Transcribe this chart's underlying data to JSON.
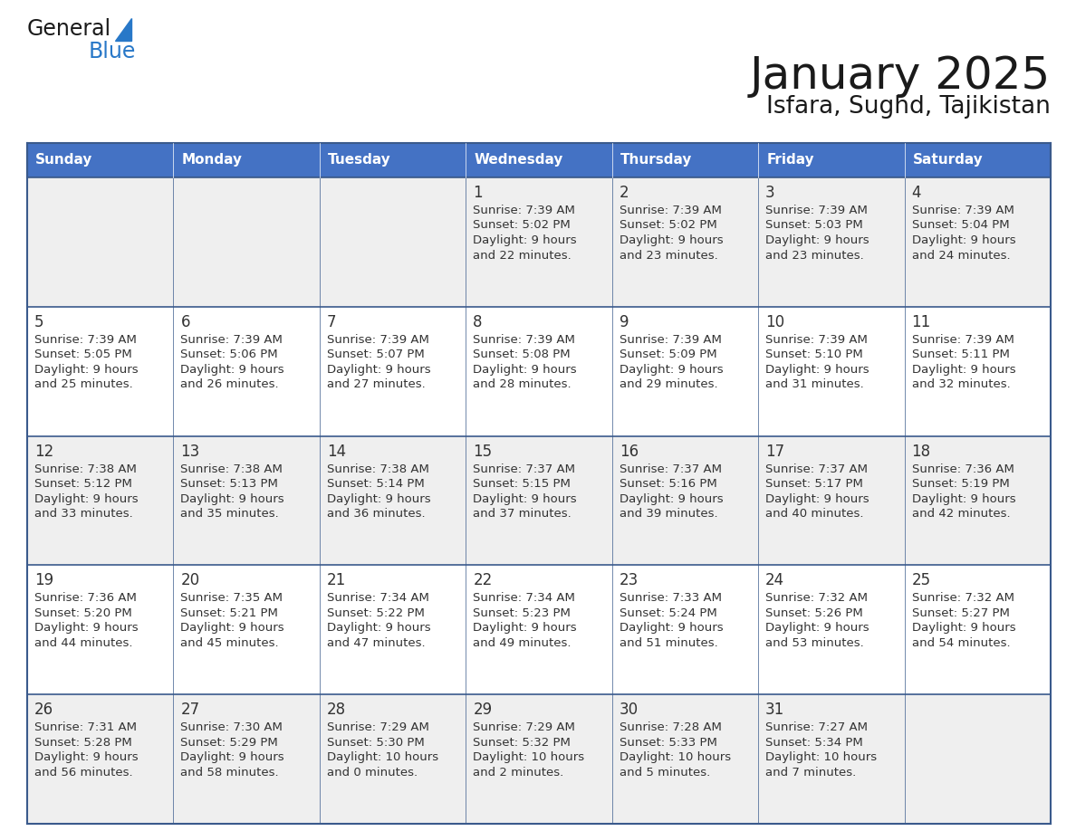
{
  "title": "January 2025",
  "subtitle": "Isfara, Sughd, Tajikistan",
  "header_bg": "#4472C4",
  "header_text_color": "#FFFFFF",
  "cell_bg_even": "#EFEFEF",
  "cell_bg_odd": "#FFFFFF",
  "border_color": "#3A5A8C",
  "days_of_week": [
    "Sunday",
    "Monday",
    "Tuesday",
    "Wednesday",
    "Thursday",
    "Friday",
    "Saturday"
  ],
  "title_color": "#1a1a1a",
  "subtitle_color": "#1a1a1a",
  "cell_text_color": "#333333",
  "day_num_color": "#333333",
  "logo_general_color": "#1a1a1a",
  "logo_blue_color": "#2878C8",
  "logo_triangle_color": "#2878C8",
  "calendar": [
    [
      {
        "day": "",
        "sunrise": "",
        "sunset": "",
        "daylight": ""
      },
      {
        "day": "",
        "sunrise": "",
        "sunset": "",
        "daylight": ""
      },
      {
        "day": "",
        "sunrise": "",
        "sunset": "",
        "daylight": ""
      },
      {
        "day": "1",
        "sunrise": "7:39 AM",
        "sunset": "5:02 PM",
        "daylight": "9 hours and 22 minutes."
      },
      {
        "day": "2",
        "sunrise": "7:39 AM",
        "sunset": "5:02 PM",
        "daylight": "9 hours and 23 minutes."
      },
      {
        "day": "3",
        "sunrise": "7:39 AM",
        "sunset": "5:03 PM",
        "daylight": "9 hours and 23 minutes."
      },
      {
        "day": "4",
        "sunrise": "7:39 AM",
        "sunset": "5:04 PM",
        "daylight": "9 hours and 24 minutes."
      }
    ],
    [
      {
        "day": "5",
        "sunrise": "7:39 AM",
        "sunset": "5:05 PM",
        "daylight": "9 hours and 25 minutes."
      },
      {
        "day": "6",
        "sunrise": "7:39 AM",
        "sunset": "5:06 PM",
        "daylight": "9 hours and 26 minutes."
      },
      {
        "day": "7",
        "sunrise": "7:39 AM",
        "sunset": "5:07 PM",
        "daylight": "9 hours and 27 minutes."
      },
      {
        "day": "8",
        "sunrise": "7:39 AM",
        "sunset": "5:08 PM",
        "daylight": "9 hours and 28 minutes."
      },
      {
        "day": "9",
        "sunrise": "7:39 AM",
        "sunset": "5:09 PM",
        "daylight": "9 hours and 29 minutes."
      },
      {
        "day": "10",
        "sunrise": "7:39 AM",
        "sunset": "5:10 PM",
        "daylight": "9 hours and 31 minutes."
      },
      {
        "day": "11",
        "sunrise": "7:39 AM",
        "sunset": "5:11 PM",
        "daylight": "9 hours and 32 minutes."
      }
    ],
    [
      {
        "day": "12",
        "sunrise": "7:38 AM",
        "sunset": "5:12 PM",
        "daylight": "9 hours and 33 minutes."
      },
      {
        "day": "13",
        "sunrise": "7:38 AM",
        "sunset": "5:13 PM",
        "daylight": "9 hours and 35 minutes."
      },
      {
        "day": "14",
        "sunrise": "7:38 AM",
        "sunset": "5:14 PM",
        "daylight": "9 hours and 36 minutes."
      },
      {
        "day": "15",
        "sunrise": "7:37 AM",
        "sunset": "5:15 PM",
        "daylight": "9 hours and 37 minutes."
      },
      {
        "day": "16",
        "sunrise": "7:37 AM",
        "sunset": "5:16 PM",
        "daylight": "9 hours and 39 minutes."
      },
      {
        "day": "17",
        "sunrise": "7:37 AM",
        "sunset": "5:17 PM",
        "daylight": "9 hours and 40 minutes."
      },
      {
        "day": "18",
        "sunrise": "7:36 AM",
        "sunset": "5:19 PM",
        "daylight": "9 hours and 42 minutes."
      }
    ],
    [
      {
        "day": "19",
        "sunrise": "7:36 AM",
        "sunset": "5:20 PM",
        "daylight": "9 hours and 44 minutes."
      },
      {
        "day": "20",
        "sunrise": "7:35 AM",
        "sunset": "5:21 PM",
        "daylight": "9 hours and 45 minutes."
      },
      {
        "day": "21",
        "sunrise": "7:34 AM",
        "sunset": "5:22 PM",
        "daylight": "9 hours and 47 minutes."
      },
      {
        "day": "22",
        "sunrise": "7:34 AM",
        "sunset": "5:23 PM",
        "daylight": "9 hours and 49 minutes."
      },
      {
        "day": "23",
        "sunrise": "7:33 AM",
        "sunset": "5:24 PM",
        "daylight": "9 hours and 51 minutes."
      },
      {
        "day": "24",
        "sunrise": "7:32 AM",
        "sunset": "5:26 PM",
        "daylight": "9 hours and 53 minutes."
      },
      {
        "day": "25",
        "sunrise": "7:32 AM",
        "sunset": "5:27 PM",
        "daylight": "9 hours and 54 minutes."
      }
    ],
    [
      {
        "day": "26",
        "sunrise": "7:31 AM",
        "sunset": "5:28 PM",
        "daylight": "9 hours and 56 minutes."
      },
      {
        "day": "27",
        "sunrise": "7:30 AM",
        "sunset": "5:29 PM",
        "daylight": "9 hours and 58 minutes."
      },
      {
        "day": "28",
        "sunrise": "7:29 AM",
        "sunset": "5:30 PM",
        "daylight": "10 hours and 0 minutes."
      },
      {
        "day": "29",
        "sunrise": "7:29 AM",
        "sunset": "5:32 PM",
        "daylight": "10 hours and 2 minutes."
      },
      {
        "day": "30",
        "sunrise": "7:28 AM",
        "sunset": "5:33 PM",
        "daylight": "10 hours and 5 minutes."
      },
      {
        "day": "31",
        "sunrise": "7:27 AM",
        "sunset": "5:34 PM",
        "daylight": "10 hours and 7 minutes."
      },
      {
        "day": "",
        "sunrise": "",
        "sunset": "",
        "daylight": ""
      }
    ]
  ]
}
